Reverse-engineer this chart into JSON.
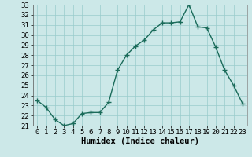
{
  "xlabel": "Humidex (Indice chaleur)",
  "x_values": [
    0,
    1,
    2,
    3,
    4,
    5,
    6,
    7,
    8,
    9,
    10,
    11,
    12,
    13,
    14,
    15,
    16,
    17,
    18,
    19,
    20,
    21,
    22,
    23
  ],
  "y_values": [
    23.5,
    22.8,
    21.6,
    21.0,
    21.2,
    22.2,
    22.3,
    22.3,
    23.3,
    26.5,
    28.0,
    28.9,
    29.5,
    30.5,
    31.2,
    31.2,
    31.3,
    33.0,
    30.8,
    30.7,
    28.8,
    26.5,
    25.0,
    23.2
  ],
  "line_color": "#1a6b5a",
  "marker": "+",
  "marker_size": 4,
  "bg_color": "#cce8e8",
  "grid_color": "#99cccc",
  "ylim": [
    21,
    33
  ],
  "yticks": [
    21,
    22,
    23,
    24,
    25,
    26,
    27,
    28,
    29,
    30,
    31,
    32,
    33
  ],
  "xticks": [
    0,
    1,
    2,
    3,
    4,
    5,
    6,
    7,
    8,
    9,
    10,
    11,
    12,
    13,
    14,
    15,
    16,
    17,
    18,
    19,
    20,
    21,
    22,
    23
  ],
  "tick_fontsize": 6.5,
  "xlabel_fontsize": 7.5
}
